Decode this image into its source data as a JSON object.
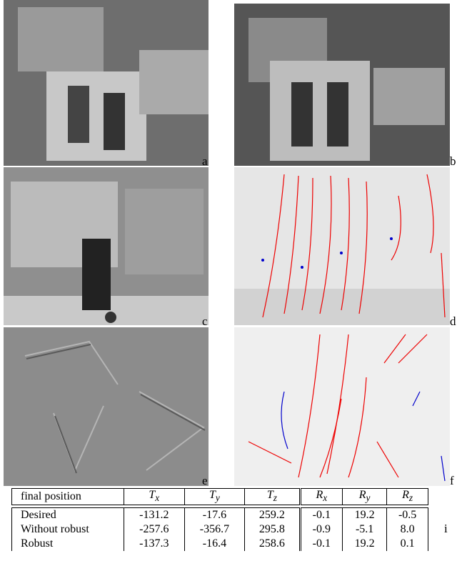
{
  "panels": [
    {
      "label": "a"
    },
    {
      "label": "b"
    },
    {
      "label": "c"
    },
    {
      "label": "d"
    },
    {
      "label": "e"
    },
    {
      "label": "f"
    }
  ],
  "table": {
    "label": "i",
    "header": {
      "first": "final position",
      "cols": [
        {
          "symbol": "T",
          "sub": "x"
        },
        {
          "symbol": "T",
          "sub": "y"
        },
        {
          "symbol": "T",
          "sub": "z"
        },
        {
          "symbol": "R",
          "sub": "x"
        },
        {
          "symbol": "R",
          "sub": "y"
        },
        {
          "symbol": "R",
          "sub": "z"
        }
      ]
    },
    "rows": [
      [
        "Desired",
        "-131.2",
        "-17.6",
        "259.2",
        "-0.1",
        "19.2",
        "-0.5"
      ],
      [
        "Without robust",
        "-257.6",
        "-356.7",
        "295.8",
        "-0.9",
        "-5.1",
        "8.0"
      ],
      [
        "Robust",
        "-137.3",
        "-16.4",
        "258.6",
        "-0.1",
        "19.2",
        "0.1"
      ]
    ]
  }
}
